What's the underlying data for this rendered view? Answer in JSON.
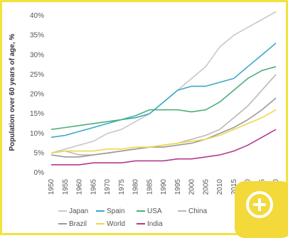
{
  "chart_data": {
    "type": "line",
    "title": "",
    "xlabel": "",
    "ylabel": "Population over 60 years of age, %",
    "ylim": [
      0,
      40
    ],
    "yticks": [
      "0%",
      "5%",
      "10%",
      "15%",
      "20%",
      "25%",
      "30%",
      "35%",
      "40%"
    ],
    "x": [
      1950,
      1955,
      1960,
      1965,
      1970,
      1975,
      1980,
      1985,
      1990,
      1995,
      2000,
      2005,
      2010,
      2015,
      2020,
      2025,
      2030
    ],
    "xticks": [
      "1950",
      "1955",
      "1960",
      "1965",
      "1970",
      "1975",
      "1980",
      "1985",
      "1990",
      "1995",
      "2000",
      "2005",
      "2010",
      "2015",
      "2020",
      "2025",
      "2030"
    ],
    "grid": false,
    "legend_position": "bottom",
    "series": [
      {
        "name": "Japan",
        "color": "#c8c8c8",
        "values": [
          5,
          6,
          7,
          8,
          10,
          11,
          13,
          15,
          18,
          21,
          24,
          27,
          32,
          35,
          37,
          39,
          41
        ]
      },
      {
        "name": "Spain",
        "color": "#3aa8c8",
        "values": [
          9,
          9.5,
          10.5,
          11.5,
          12.5,
          13.5,
          14,
          15,
          18,
          21,
          22,
          22,
          23,
          24,
          27,
          30,
          33
        ]
      },
      {
        "name": "USA",
        "color": "#4caf7a",
        "values": [
          11,
          11.5,
          12,
          12.5,
          13,
          13.5,
          14.5,
          16,
          16,
          16,
          15.5,
          16,
          18,
          21,
          24,
          26,
          27
        ]
      },
      {
        "name": "China",
        "color": "#b8b8b8",
        "values": [
          5,
          5.5,
          4.5,
          4.5,
          5,
          5.5,
          6,
          6.5,
          7,
          7.5,
          8.5,
          9.5,
          11,
          14,
          17,
          21,
          25
        ]
      },
      {
        "name": "Brazil",
        "color": "#9a9a9a",
        "values": [
          4.5,
          4,
          4,
          4.5,
          5,
          5.5,
          6,
          6.5,
          6.5,
          7,
          7.5,
          8.5,
          10,
          11.5,
          13.5,
          16,
          19
        ]
      },
      {
        "name": "World",
        "color": "#f0d84a",
        "values": [
          5,
          5.5,
          5.5,
          5.5,
          6,
          6,
          6.5,
          6.5,
          7,
          7.5,
          8,
          8.5,
          9.5,
          11,
          12.5,
          14,
          16
        ]
      },
      {
        "name": "India",
        "color": "#b23a8e",
        "values": [
          2,
          2,
          2,
          2.5,
          2.5,
          2.5,
          3,
          3,
          3,
          3.5,
          3.5,
          4,
          4.5,
          5.5,
          7,
          9,
          11
        ]
      }
    ]
  },
  "zoom": {
    "icon": "zoom-in-icon"
  }
}
